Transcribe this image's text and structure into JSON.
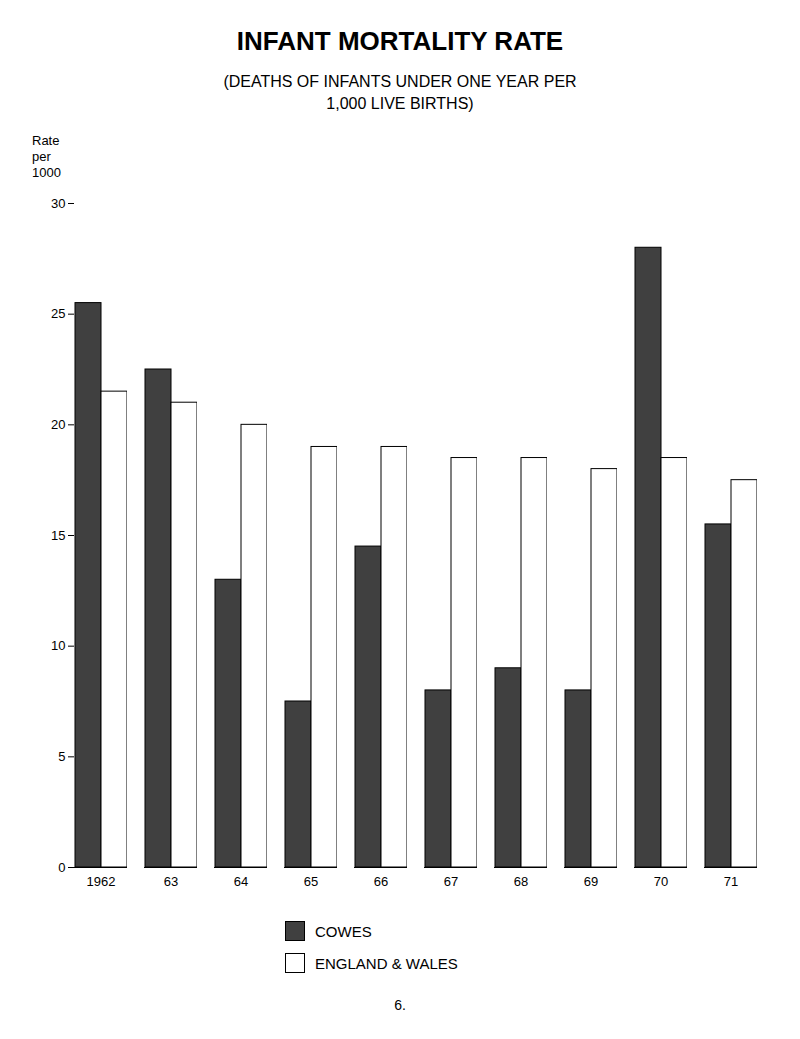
{
  "chart_data": {
    "type": "bar",
    "title": "INFANT MORTALITY RATE",
    "subtitle": [
      "(DEATHS OF INFANTS UNDER ONE YEAR PER",
      "1,000 LIVE BIRTHS)"
    ],
    "ylabel": [
      "Rate",
      "per",
      "1000"
    ],
    "categories": [
      "1962",
      "63",
      "64",
      "65",
      "66",
      "67",
      "68",
      "69",
      "70",
      "71"
    ],
    "series": [
      {
        "name": "COWES",
        "color": "#404040",
        "values": [
          25.5,
          22.5,
          13.0,
          7.5,
          14.5,
          8.0,
          9.0,
          8.0,
          28.0,
          15.5
        ]
      },
      {
        "name": "ENGLAND & WALES",
        "color": "#ffffff",
        "values": [
          21.5,
          21.0,
          20.0,
          19.0,
          19.0,
          18.5,
          18.5,
          18.0,
          18.5,
          17.5
        ]
      }
    ],
    "ylim": [
      0,
      30
    ],
    "yticks": [
      0,
      5,
      10,
      15,
      20,
      25,
      30
    ],
    "grid": false,
    "legend": "bottom",
    "annotations": [
      "6."
    ]
  }
}
